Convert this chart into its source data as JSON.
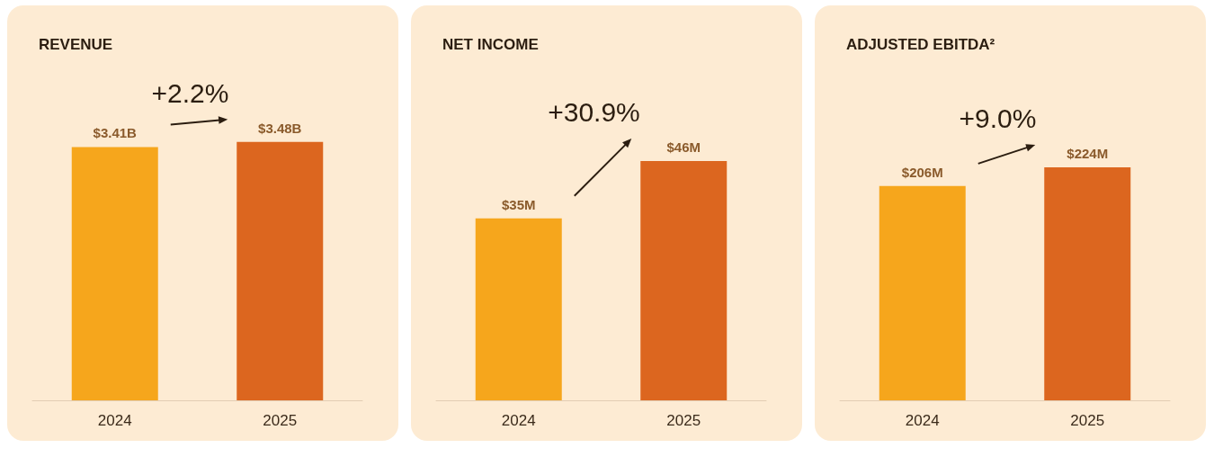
{
  "chart_data": [
    {
      "type": "bar",
      "title": "REVENUE",
      "categories": [
        "2024",
        "2025"
      ],
      "values": [
        3.41,
        3.48
      ],
      "colors": [
        "#f6a61c",
        "#dc661f"
      ],
      "value_labels": [
        "$3.41B",
        "$3.48B"
      ],
      "annotations": [
        "+2.2%"
      ]
    },
    {
      "type": "bar",
      "title": "NET INCOME",
      "categories": [
        "2024",
        "2025"
      ],
      "values": [
        35,
        46
      ],
      "colors": [
        "#f6a61c",
        "#dc661f"
      ],
      "value_labels": [
        "$35M",
        "$46M"
      ],
      "annotations": [
        "+30.9%"
      ]
    },
    {
      "type": "bar",
      "title": "ADJUSTED EBITDA²",
      "categories": [
        "2024",
        "2025"
      ],
      "values": [
        206,
        224
      ],
      "colors": [
        "#f6a61c",
        "#dc661f"
      ],
      "value_labels": [
        "$206M",
        "$224M"
      ],
      "annotations": [
        "+9.0%"
      ]
    }
  ]
}
